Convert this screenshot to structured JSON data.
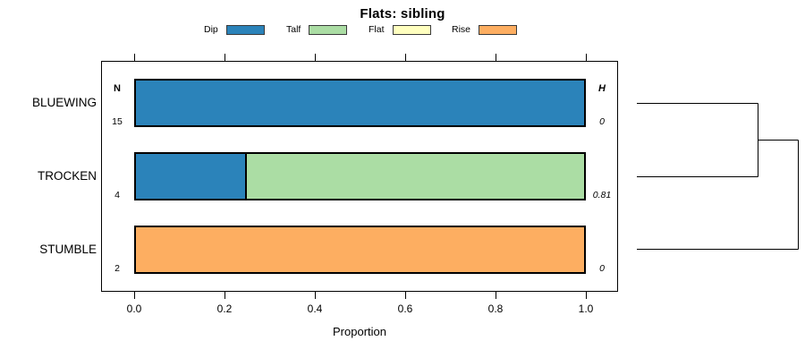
{
  "title": "Flats: sibling",
  "legend": {
    "items": [
      {
        "label": "Dip",
        "color": "#2b83ba"
      },
      {
        "label": "Talf",
        "color": "#abdda4"
      },
      {
        "label": "Flat",
        "color": "#ffffbf"
      },
      {
        "label": "Rise",
        "color": "#fdae61"
      }
    ]
  },
  "columns": {
    "n_header": "N",
    "h_header": "H"
  },
  "xaxis": {
    "label": "Proportion",
    "ticks": [
      "0.0",
      "0.2",
      "0.4",
      "0.6",
      "0.8",
      "1.0"
    ]
  },
  "chart_data": {
    "type": "bar",
    "stacked": true,
    "orientation": "horizontal",
    "title": "Flats: sibling",
    "xlabel": "Proportion",
    "xlim": [
      0,
      1
    ],
    "grid": false,
    "legend_position": "top",
    "categories": [
      "BLUEWING",
      "TROCKEN",
      "STUMBLE"
    ],
    "series": [
      {
        "name": "Dip",
        "color": "#2b83ba",
        "values": [
          1.0,
          0.25,
          0
        ]
      },
      {
        "name": "Talf",
        "color": "#abdda4",
        "values": [
          0,
          0.75,
          0
        ]
      },
      {
        "name": "Flat",
        "color": "#ffffbf",
        "values": [
          0,
          0,
          0
        ]
      },
      {
        "name": "Rise",
        "color": "#fdae61",
        "values": [
          0,
          0,
          1.0
        ]
      }
    ],
    "rows": [
      {
        "label": "BLUEWING",
        "n": "15",
        "h": "0"
      },
      {
        "label": "TROCKEN",
        "n": "4",
        "h": "0.81"
      },
      {
        "label": "STUMBLE",
        "n": "2",
        "h": "0"
      }
    ],
    "dendrogram": {
      "leaves": [
        "BLUEWING",
        "TROCKEN",
        "STUMBLE"
      ],
      "merges": [
        {
          "members": [
            "BLUEWING",
            "TROCKEN"
          ],
          "height": 0.81
        },
        {
          "members": [
            [
              "BLUEWING",
              "TROCKEN"
            ],
            "STUMBLE"
          ]
        }
      ]
    }
  }
}
